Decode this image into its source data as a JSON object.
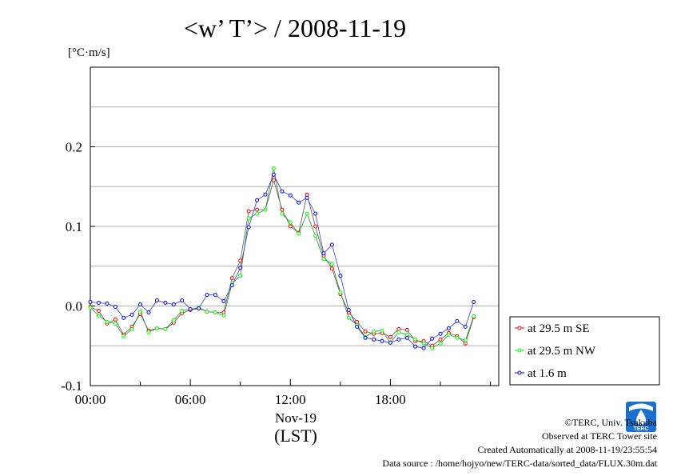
{
  "chart_data": {
    "type": "line",
    "title": "<w’ T’> / 2008-11-19",
    "unit_label": "[°C·m/s]",
    "ylim": [
      -0.1,
      0.3
    ],
    "yticks": [
      -0.1,
      0.0,
      0.1,
      0.2
    ],
    "ytick_labels": [
      "-0.1",
      "0.0",
      "0.1",
      "0.2"
    ],
    "xlim": [
      0,
      24.5
    ],
    "xticks": [
      0,
      6,
      12,
      18
    ],
    "xtick_labels": [
      "00:00",
      "06:00",
      "12:00",
      "18:00"
    ],
    "x_date_label": "Nov-19",
    "xlabel": "(LST)",
    "grid": true,
    "legend_position": "right-bottom",
    "x": [
      0.0,
      0.5,
      1.0,
      1.5,
      2.0,
      2.5,
      3.0,
      3.5,
      4.0,
      4.5,
      5.0,
      5.5,
      6.0,
      6.5,
      7.0,
      7.5,
      8.0,
      8.5,
      9.0,
      9.5,
      10.0,
      10.5,
      11.0,
      11.5,
      12.0,
      12.5,
      13.0,
      13.5,
      14.0,
      14.5,
      15.0,
      15.5,
      16.0,
      16.5,
      17.0,
      17.5,
      18.0,
      18.5,
      19.0,
      19.5,
      20.0,
      20.5,
      21.0,
      21.5,
      22.0,
      22.5,
      23.0
    ],
    "series": [
      {
        "name": "at 29.5 m SE",
        "color": "#ff0000",
        "values": [
          -0.001,
          -0.006,
          -0.022,
          -0.017,
          -0.036,
          -0.026,
          -0.01,
          -0.031,
          -0.028,
          -0.029,
          -0.021,
          -0.009,
          -0.005,
          -0.003,
          -0.007,
          -0.008,
          -0.008,
          0.035,
          0.057,
          0.119,
          0.121,
          0.121,
          0.158,
          0.121,
          0.1,
          0.092,
          0.14,
          0.1,
          0.063,
          0.047,
          0.015,
          -0.008,
          -0.02,
          -0.032,
          -0.035,
          -0.034,
          -0.039,
          -0.029,
          -0.03,
          -0.044,
          -0.044,
          -0.05,
          -0.042,
          -0.034,
          -0.038,
          -0.047,
          -0.014
        ]
      },
      {
        "name": "at 29.5 m NW",
        "color": "#00ff00",
        "values": [
          -0.002,
          -0.012,
          -0.02,
          -0.022,
          -0.038,
          -0.029,
          -0.007,
          -0.033,
          -0.028,
          -0.029,
          -0.018,
          -0.006,
          -0.004,
          -0.002,
          -0.007,
          -0.008,
          -0.012,
          0.028,
          0.038,
          0.11,
          0.116,
          0.121,
          0.173,
          0.116,
          0.105,
          0.091,
          0.116,
          0.088,
          0.059,
          0.053,
          0.017,
          -0.015,
          -0.024,
          -0.039,
          -0.032,
          -0.031,
          -0.046,
          -0.033,
          -0.036,
          -0.042,
          -0.047,
          -0.053,
          -0.047,
          -0.036,
          -0.04,
          -0.043,
          -0.013
        ]
      },
      {
        "name": "at 1.6 m",
        "color": "#0000ff",
        "values": [
          0.005,
          0.004,
          0.003,
          -0.001,
          -0.015,
          -0.011,
          0.002,
          -0.008,
          0.007,
          0.004,
          0.002,
          0.007,
          -0.004,
          -0.003,
          0.014,
          0.014,
          0.006,
          0.026,
          0.048,
          0.099,
          0.133,
          0.14,
          0.165,
          0.144,
          0.139,
          0.13,
          0.136,
          0.116,
          0.066,
          0.077,
          0.038,
          -0.005,
          -0.026,
          -0.04,
          -0.042,
          -0.044,
          -0.046,
          -0.042,
          -0.04,
          -0.051,
          -0.053,
          -0.041,
          -0.035,
          -0.028,
          -0.019,
          -0.026,
          0.005
        ]
      }
    ]
  },
  "credits": {
    "copyright": "©TERC, Univ. Tsukuba",
    "observed": "Observed at TERC Tower site",
    "created": "Created Automatically at 2008-11-19/23:55:54",
    "source": "Data source : /home/hojyo/new/TERC-data/sorted_data/FLUX.30m.dat",
    "logo_text": "TERC"
  }
}
